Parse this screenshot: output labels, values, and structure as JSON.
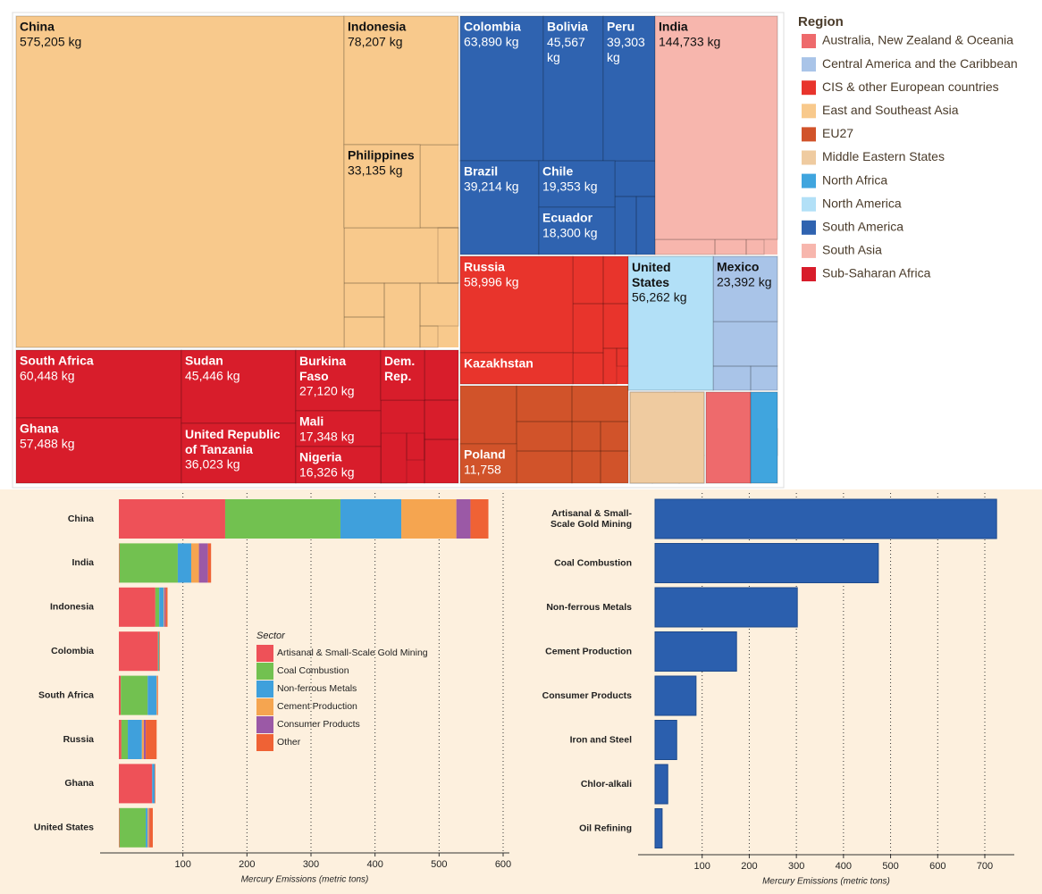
{
  "chart_data": [
    {
      "type": "treemap",
      "legend_title": "Region",
      "series": [
        {
          "name": "Australia, New Zealand & Oceania",
          "color": "#ee6a6c",
          "categories": [
            null
          ],
          "values": [
            21500
          ],
          "value_labels": [
            null
          ]
        },
        {
          "name": "Central America and the Caribbean",
          "color": "#a9c4e8",
          "categories": [
            "Mexico"
          ],
          "values": [
            23392
          ],
          "value_labels": [
            "23,392 kg"
          ]
        },
        {
          "name": "CIS & other European countries",
          "color": "#e8342c",
          "categories": [
            "Russia",
            "Kazakhstan"
          ],
          "values": [
            58996,
            18600
          ],
          "value_labels": [
            "58,996 kg",
            null
          ]
        },
        {
          "name": "East and Southeast Asia",
          "color": "#f8c98c",
          "categories": [
            "China",
            "Indonesia",
            "Philippines"
          ],
          "values": [
            575205,
            78207,
            33135
          ],
          "value_labels": [
            "575,205 kg",
            "78,207 kg",
            "33,135 kg"
          ]
        },
        {
          "name": "EU27",
          "color": "#d1532a",
          "categories": [
            "Poland"
          ],
          "values": [
            11758
          ],
          "value_labels": [
            "11,758"
          ]
        },
        {
          "name": "Middle Eastern States",
          "color": "#efcba0",
          "categories": [
            null
          ],
          "values": [
            35700
          ],
          "value_labels": [
            null
          ]
        },
        {
          "name": "North Africa",
          "color": "#40a5de",
          "categories": [
            null
          ],
          "values": [
            12900
          ],
          "value_labels": [
            null
          ]
        },
        {
          "name": "North America",
          "color": "#b2e0f7",
          "categories": [
            "United States"
          ],
          "values": [
            56262
          ],
          "value_labels": [
            "56,262 kg"
          ]
        },
        {
          "name": "South America",
          "color": "#2f63b0",
          "categories": [
            "Colombia",
            "Bolivia",
            "Peru",
            "Brazil",
            "Chile",
            "Ecuador"
          ],
          "values": [
            63890,
            45567,
            39303,
            39214,
            19353,
            18300
          ],
          "value_labels": [
            "63,890 kg",
            "45,567 kg",
            "39,303 kg",
            "39,214 kg",
            "19,353 kg",
            "18,300 kg"
          ]
        },
        {
          "name": "South Asia",
          "color": "#f7b6ad",
          "categories": [
            "India"
          ],
          "values": [
            144733
          ],
          "value_labels": [
            "144,733 kg"
          ]
        },
        {
          "name": "Sub-Saharan Africa",
          "color": "#d81d2b",
          "categories": [
            "South Africa",
            "Ghana",
            "Sudan",
            "United Republic of Tanzania",
            "Burkina Faso",
            "Mali",
            "Nigeria",
            "Dem. Rep."
          ],
          "values": [
            60448,
            57488,
            45446,
            36023,
            27120,
            17348,
            16326,
            11600
          ],
          "value_labels": [
            "60,448 kg",
            "57,488 kg",
            "45,446 kg",
            "36,023 kg",
            "27,120 kg",
            "17,348 kg",
            "16,326 kg",
            null
          ]
        }
      ]
    },
    {
      "type": "stacked_bar",
      "x_label": "Mercury Emissions (metric tons)",
      "legend_title": "Sector",
      "categories": [
        "China",
        "India",
        "Indonesia",
        "Colombia",
        "South Africa",
        "Russia",
        "Ghana",
        "United States"
      ],
      "series": [
        {
          "name": "Artisanal & Small-Scale Gold Mining",
          "color": "#ee5158",
          "values": [
            166,
            1,
            57,
            61,
            3,
            4,
            52,
            1
          ]
        },
        {
          "name": "Coal Combustion",
          "color": "#72c150",
          "values": [
            180,
            91,
            6,
            1,
            42,
            10,
            0,
            41
          ]
        },
        {
          "name": "Non-ferrous Metals",
          "color": "#3fa0dc",
          "values": [
            95,
            21,
            7,
            1,
            14,
            22,
            4,
            3
          ]
        },
        {
          "name": "Cement Production",
          "color": "#f5a550",
          "values": [
            86,
            12,
            1,
            0,
            1,
            3,
            0,
            2
          ]
        },
        {
          "name": "Consumer Products",
          "color": "#9b59a6",
          "values": [
            22,
            14,
            2,
            0,
            0,
            3,
            0,
            1
          ]
        },
        {
          "name": "Other",
          "color": "#ef6235",
          "values": [
            28,
            5,
            3,
            1,
            1,
            17,
            1,
            5
          ]
        }
      ],
      "xlim": [
        0,
        600
      ],
      "xticks": [
        100,
        200,
        300,
        400,
        500,
        600
      ],
      "grid": true
    },
    {
      "type": "bar",
      "x_label": "Mercury Emissions (metric tons)",
      "color": "#2b5fae",
      "categories": [
        "Artisanal & Small-Scale Gold Mining",
        "Coal Combustion",
        "Non-ferrous Metals",
        "Cement Production",
        "Consumer Products",
        "Iron and Steel",
        "Chlor-alkali",
        "Oil Refining"
      ],
      "values": [
        725,
        474,
        302,
        173,
        87,
        46,
        27,
        15
      ],
      "xlim": [
        0,
        700
      ],
      "xticks": [
        100,
        200,
        300,
        400,
        500,
        600,
        700
      ],
      "grid": true
    }
  ]
}
